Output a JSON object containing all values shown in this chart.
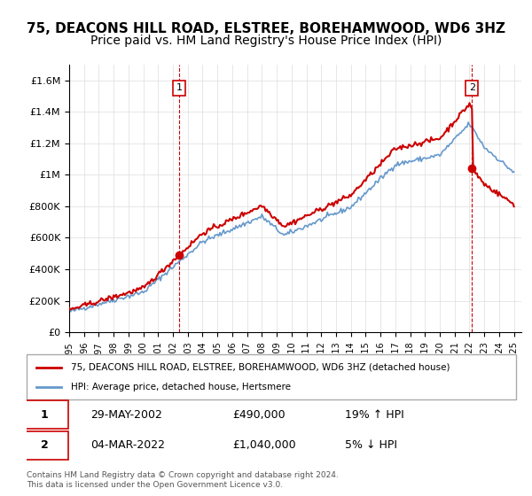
{
  "title": "75, DEACONS HILL ROAD, ELSTREE, BOREHAMWOOD, WD6 3HZ",
  "subtitle": "Price paid vs. HM Land Registry's House Price Index (HPI)",
  "ylabel_ticks": [
    "£0",
    "£200K",
    "£400K",
    "£600K",
    "£800K",
    "£1M",
    "£1.2M",
    "£1.4M",
    "£1.6M"
  ],
  "ytick_values": [
    0,
    200000,
    400000,
    600000,
    800000,
    1000000,
    1200000,
    1400000,
    1600000
  ],
  "ylim": [
    0,
    1700000
  ],
  "xlim_start": 1995.0,
  "xlim_end": 2025.5,
  "hpi_color": "#6699cc",
  "price_color": "#cc0000",
  "vline_color": "#cc0000",
  "marker1_date": 2002.41,
  "marker1_price": 490000,
  "marker2_date": 2022.17,
  "marker2_price": 1040000,
  "legend_label1": "75, DEACONS HILL ROAD, ELSTREE, BOREHAMWOOD, WD6 3HZ (detached house)",
  "legend_label2": "HPI: Average price, detached house, Hertsmere",
  "table_row1_num": "1",
  "table_row1_date": "29-MAY-2002",
  "table_row1_price": "£490,000",
  "table_row1_hpi": "19% ↑ HPI",
  "table_row2_num": "2",
  "table_row2_date": "04-MAR-2022",
  "table_row2_price": "£1,040,000",
  "table_row2_hpi": "5% ↓ HPI",
  "footnote": "Contains HM Land Registry data © Crown copyright and database right 2024.\nThis data is licensed under the Open Government Licence v3.0.",
  "background_color": "#ffffff",
  "grid_color": "#dddddd",
  "title_fontsize": 11,
  "subtitle_fontsize": 10
}
